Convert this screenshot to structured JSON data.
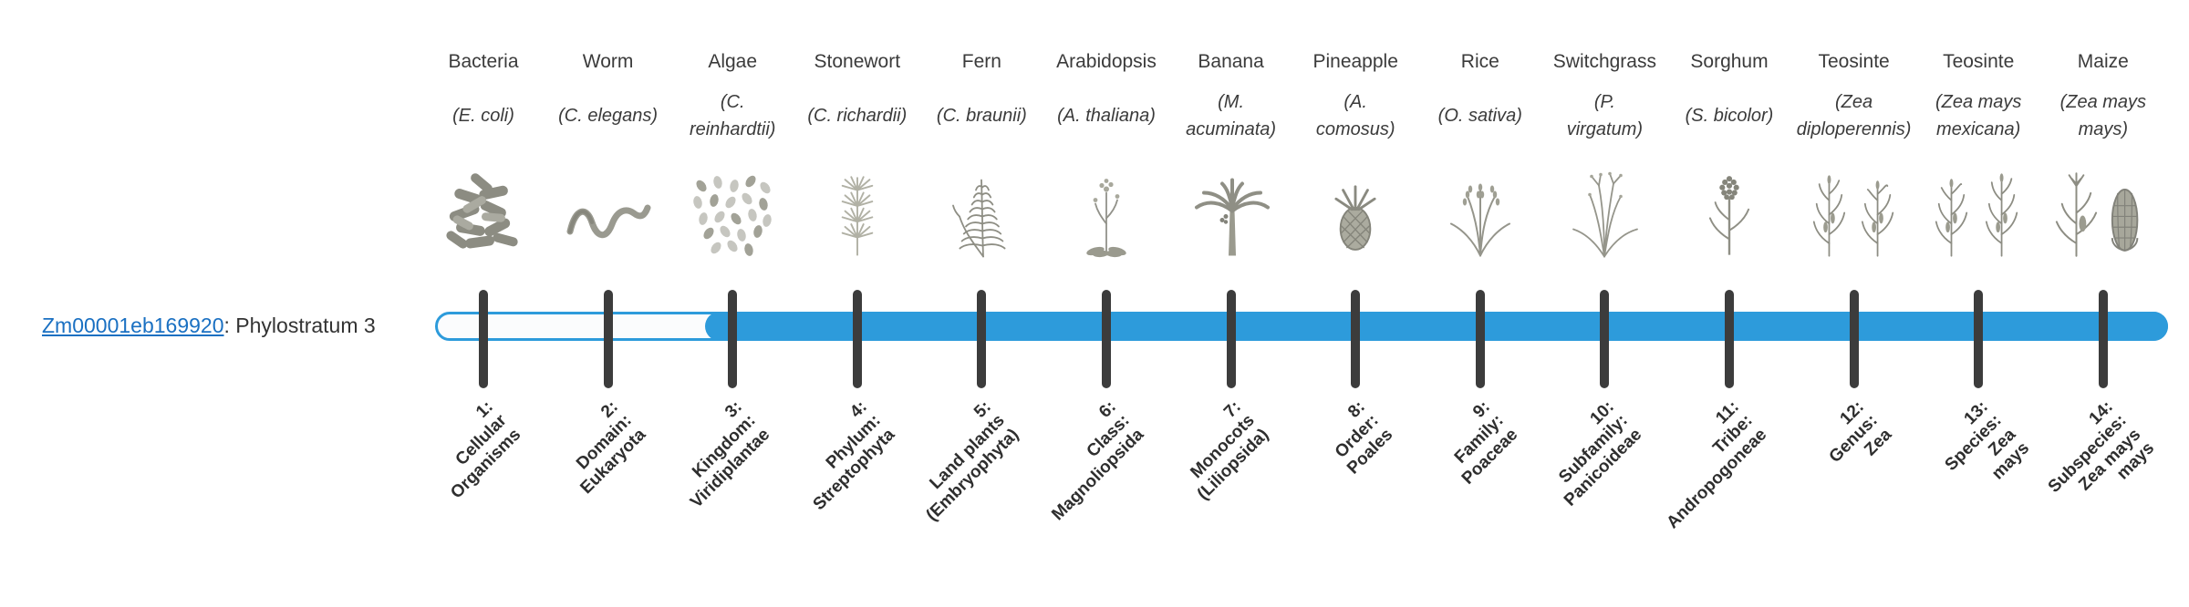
{
  "gene": {
    "id": "Zm00001eb169920",
    "suffix": ": Phylostratum 3",
    "phylostratum": 3
  },
  "timeline": {
    "bar_color": "#2d9bdb",
    "tick_color": "#3c3c3c",
    "unfilled_color": "#fbfcfd",
    "fill_starts_at_stratum": 3
  },
  "strata": [
    {
      "index": 1,
      "name": "Bacteria",
      "latin": "(E. coli)",
      "icon": "bacteria-icon",
      "stratum_label": "1:\nCellular\nOrganisms"
    },
    {
      "index": 2,
      "name": "Worm",
      "latin": "(C. elegans)",
      "icon": "worm-icon",
      "stratum_label": "2:\nDomain:\nEukaryota"
    },
    {
      "index": 3,
      "name": "Algae",
      "latin": "(C.\nreinhardtii)",
      "icon": "algae-icon",
      "stratum_label": "3:\nKingdom:\nViridiplantae"
    },
    {
      "index": 4,
      "name": "Stonewort",
      "latin": "(C. richardii)",
      "icon": "stonewort-icon",
      "stratum_label": "4:\nPhylum:\nStreptophyta"
    },
    {
      "index": 5,
      "name": "Fern",
      "latin": "(C. braunii)",
      "icon": "fern-icon",
      "stratum_label": "5:\nLand plants\n(Embryophyta)"
    },
    {
      "index": 6,
      "name": "Arabidopsis",
      "latin": "(A. thaliana)",
      "icon": "arabidopsis-plant-icon",
      "stratum_label": "6:\nClass:\nMagnoliopsida"
    },
    {
      "index": 7,
      "name": "Banana",
      "latin": "(M.\nacuminata)",
      "icon": "banana-tree-icon",
      "stratum_label": "7:\nMonocots\n(Liliopsida)"
    },
    {
      "index": 8,
      "name": "Pineapple",
      "latin": "(A.\ncomosus)",
      "icon": "pineapple-icon",
      "stratum_label": "8:\nOrder:\nPoales"
    },
    {
      "index": 9,
      "name": "Rice",
      "latin": "(O. sativa)",
      "icon": "rice-plant-icon",
      "stratum_label": "9:\nFamily:\nPoaceae"
    },
    {
      "index": 10,
      "name": "Switchgrass",
      "latin": "(P.\nvirgatum)",
      "icon": "switchgrass-icon",
      "stratum_label": "10:\nSubfamily:\nPanicoideae"
    },
    {
      "index": 11,
      "name": "Sorghum",
      "latin": "(S. bicolor)",
      "icon": "sorghum-icon",
      "stratum_label": "11:\nTribe:\nAndropogoneae"
    },
    {
      "index": 12,
      "name": "Teosinte",
      "latin": "(Zea\ndiploperennis)",
      "icon": "teosinte-diploperennis-icon",
      "stratum_label": "12:\nGenus:\nZea"
    },
    {
      "index": 13,
      "name": "Teosinte",
      "latin": "(Zea mays\nmexicana)",
      "icon": "teosinte-mexicana-icon",
      "stratum_label": "13:\nSpecies:\nZea\nmays"
    },
    {
      "index": 14,
      "name": "Maize",
      "latin": "(Zea mays\nmays)",
      "icon": "maize-icon",
      "stratum_label": "14:\nSubspecies:\nZea mays\nmays"
    }
  ]
}
